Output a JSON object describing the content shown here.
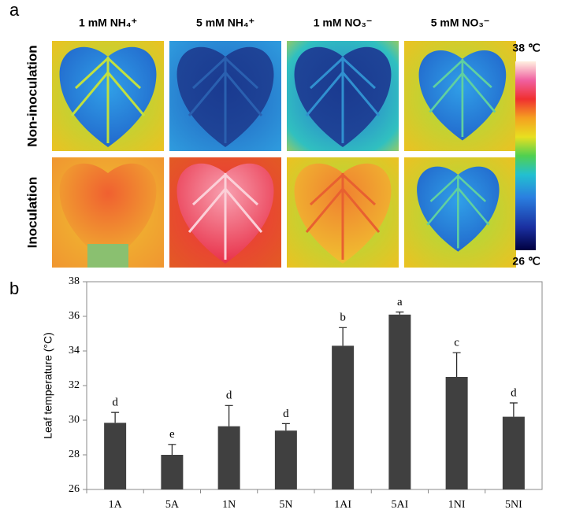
{
  "panel_a": {
    "label": "a",
    "columns": [
      "1 mM NH₄⁺",
      "5  mM NH₄⁺",
      "1 mM NO₃⁻",
      "5 mM NO₃⁻"
    ],
    "rows": [
      "Non-inoculation",
      "Inoculation"
    ],
    "colorbar_max": "38 ℃",
    "colorbar_min": "26 ℃"
  },
  "chart_data": {
    "type": "bar",
    "label": "b",
    "y_label": "Leaf temperature (°C)",
    "categories": [
      "1A",
      "5A",
      "1N",
      "5N",
      "1AI",
      "5AI",
      "1NI",
      "5NI"
    ],
    "values": [
      29.85,
      28.0,
      29.65,
      29.4,
      34.3,
      36.1,
      32.5,
      30.2
    ],
    "errors": [
      0.6,
      0.6,
      1.2,
      0.4,
      1.05,
      0.15,
      1.4,
      0.8
    ],
    "annotations": [
      "d",
      "e",
      "d",
      "d",
      "b",
      "a",
      "c",
      "d"
    ],
    "color": "#404040",
    "ylim": [
      26,
      38
    ],
    "yticks": [
      26,
      28,
      30,
      32,
      34,
      36,
      38
    ]
  }
}
